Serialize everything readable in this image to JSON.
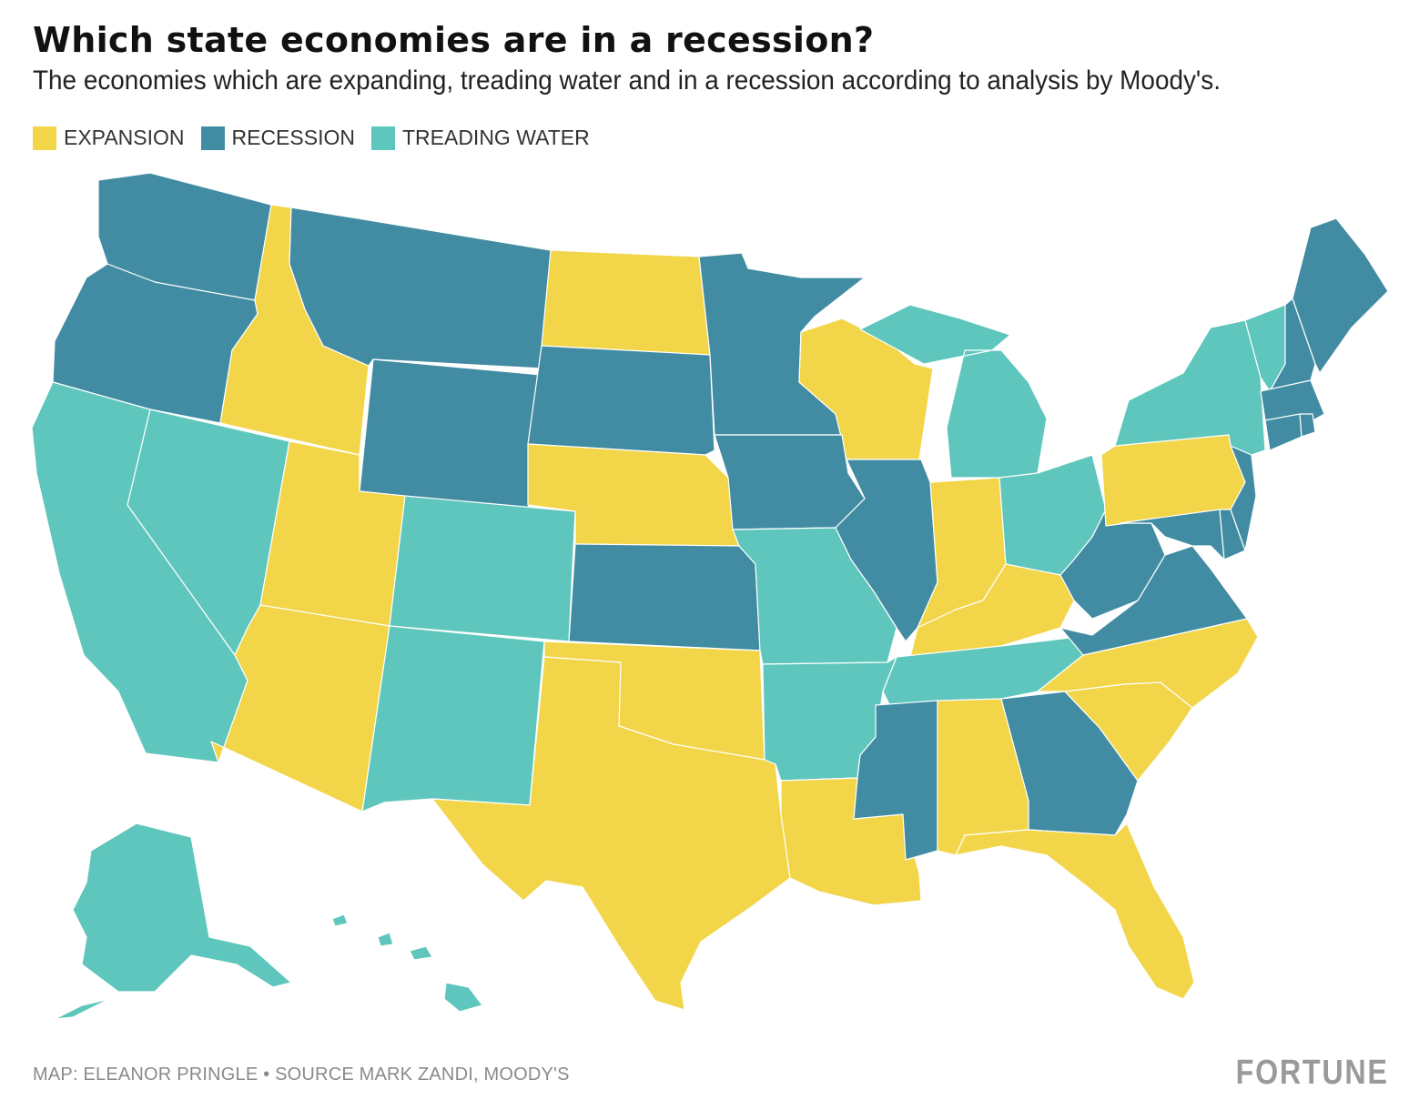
{
  "title": "Which state economies are in a recession?",
  "subtitle": "The economies which are expanding, treading water and in a recession according to analysis by Moody's.",
  "legend": [
    {
      "key": "expansion",
      "label": "EXPANSION",
      "color": "#f2d548"
    },
    {
      "key": "recession",
      "label": "RECESSION",
      "color": "#428ca3"
    },
    {
      "key": "treading",
      "label": "TREADING WATER",
      "color": "#5ec6bc"
    }
  ],
  "states": {
    "expansion": [
      "Idaho",
      "Utah",
      "Arizona",
      "North Dakota",
      "Nebraska",
      "Texas",
      "Oklahoma",
      "Louisiana",
      "Wisconsin",
      "Indiana",
      "Kentucky",
      "Alabama",
      "Florida",
      "South Carolina",
      "North Carolina",
      "Pennsylvania"
    ],
    "recession": [
      "Washington",
      "Oregon",
      "Montana",
      "Wyoming",
      "South Dakota",
      "Minnesota",
      "Iowa",
      "Kansas",
      "Illinois",
      "Mississippi",
      "Georgia",
      "West Virginia",
      "Virginia",
      "Maryland",
      "Delaware",
      "New Jersey",
      "Connecticut",
      "Rhode Island",
      "Massachusetts",
      "New Hampshire",
      "Maine"
    ],
    "treading": [
      "California",
      "Nevada",
      "Colorado",
      "New Mexico",
      "Missouri",
      "Arkansas",
      "Tennessee",
      "Michigan",
      "Ohio",
      "New York",
      "Vermont",
      "Alaska",
      "Hawaii"
    ]
  },
  "footer": {
    "credit": "MAP: ELEANOR PRINGLE • SOURCE MARK ZANDI, MOODY'S",
    "brand": "FORTUNE"
  }
}
